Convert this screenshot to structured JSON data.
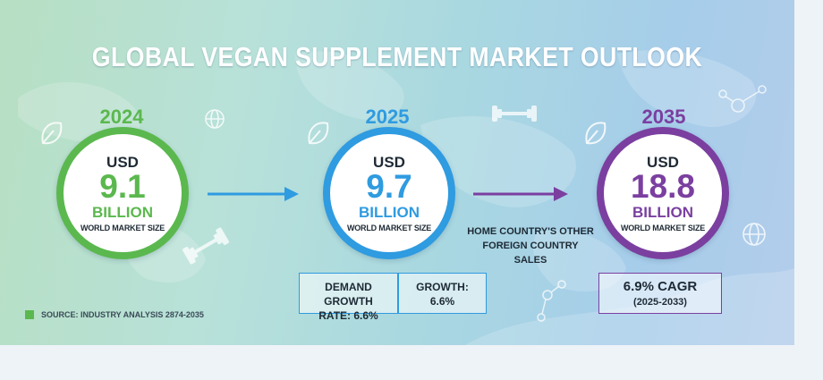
{
  "title": "GLOBAL VEGAN SUPPLEMENT MARKET OUTLOOK",
  "colors": {
    "green": "#5bb84e",
    "blue": "#2f9be0",
    "purple": "#7b3fa0",
    "dark_text": "#1e2a35"
  },
  "panels": [
    {
      "year": "2024",
      "currency": "USD",
      "value": "9.1",
      "unit": "BILLION",
      "label": "WORLD MARKET SIZE"
    },
    {
      "year": "2025",
      "currency": "USD",
      "value": "9.7",
      "unit": "BILLION",
      "label": "WORLD MARKET SIZE"
    },
    {
      "year": "2035",
      "currency": "USD",
      "value": "18.8",
      "unit": "BILLION",
      "label": "WORLD MARKET SIZE"
    }
  ],
  "growth_box": {
    "left_line1": "DEMAND GROWTH",
    "left_line2": "RATE: 6.6%",
    "right_line1": "GROWTH:",
    "right_line2": "6.6%"
  },
  "cagr_box": {
    "value": "6.9% CAGR",
    "period": "(2025-2033)"
  },
  "mid_note": {
    "line1": "HOME COUNTRY'S OTHER",
    "line2": "FOREIGN COUNTRY SALES"
  },
  "source": "SOURCE: INDUSTRY ANALYSIS 2874-2035",
  "icons": [
    "leaf-icon",
    "globe-icon",
    "dumbbell-icon",
    "arrow-right-icon",
    "molecule-icon"
  ]
}
